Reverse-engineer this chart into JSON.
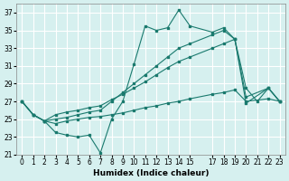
{
  "xlabel": "Humidex (Indice chaleur)",
  "background_color": "#d6f0ef",
  "grid_color": "#ffffff",
  "line_color": "#1a7a6e",
  "xlim": [
    -0.5,
    23.5
  ],
  "ylim": [
    21,
    38
  ],
  "yticks": [
    21,
    23,
    25,
    27,
    29,
    31,
    33,
    35,
    37
  ],
  "xticks": [
    0,
    1,
    2,
    3,
    4,
    5,
    6,
    7,
    8,
    9,
    10,
    11,
    12,
    13,
    14,
    15,
    17,
    18,
    19,
    20,
    21,
    22,
    23
  ],
  "series": {
    "line1": {
      "x": [
        0,
        1,
        2,
        3,
        4,
        5,
        6,
        7,
        8,
        9,
        10,
        11,
        12,
        13,
        14,
        15,
        17,
        18,
        19,
        20,
        21,
        22,
        23
      ],
      "y": [
        27,
        25.5,
        24.8,
        23.5,
        23.2,
        23.0,
        23.2,
        21.2,
        25.0,
        27.0,
        31.2,
        35.5,
        35.0,
        35.3,
        37.3,
        35.5,
        34.8,
        35.3,
        34.0,
        28.5,
        27.0,
        28.5,
        27.0
      ]
    },
    "line2": {
      "x": [
        0,
        1,
        2,
        3,
        4,
        5,
        6,
        7,
        8,
        9,
        10,
        11,
        12,
        13,
        14,
        15,
        17,
        18,
        19,
        20,
        22,
        23
      ],
      "y": [
        27,
        25.5,
        24.8,
        25.0,
        25.2,
        25.5,
        25.8,
        26.0,
        27.0,
        28.0,
        29.0,
        30.0,
        31.0,
        32.0,
        33.0,
        33.5,
        34.5,
        35.0,
        34.0,
        26.8,
        28.5,
        27.0
      ]
    },
    "line3": {
      "x": [
        0,
        1,
        2,
        3,
        4,
        5,
        6,
        7,
        8,
        9,
        10,
        11,
        12,
        13,
        14,
        15,
        17,
        18,
        19,
        20,
        22,
        23
      ],
      "y": [
        27,
        25.5,
        24.8,
        25.5,
        25.8,
        26.0,
        26.3,
        26.5,
        27.2,
        27.8,
        28.5,
        29.2,
        30.0,
        30.8,
        31.5,
        32.0,
        33.0,
        33.5,
        34.0,
        27.5,
        28.5,
        27.0
      ]
    },
    "line4": {
      "x": [
        0,
        1,
        2,
        3,
        4,
        5,
        6,
        7,
        8,
        9,
        10,
        11,
        12,
        13,
        14,
        15,
        17,
        18,
        19,
        20,
        22,
        23
      ],
      "y": [
        27,
        25.5,
        24.8,
        24.5,
        24.8,
        25.0,
        25.2,
        25.3,
        25.5,
        25.7,
        26.0,
        26.3,
        26.5,
        26.8,
        27.0,
        27.3,
        27.8,
        28.0,
        28.3,
        27.0,
        27.3,
        27.0
      ]
    }
  }
}
